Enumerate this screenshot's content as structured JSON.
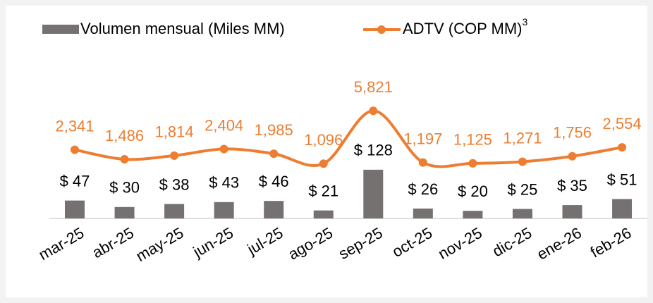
{
  "chart_data": {
    "type": "bar_line",
    "categories": [
      "mar-25",
      "abr-25",
      "may-25",
      "jun-25",
      "jul-25",
      "ago-25",
      "sep-25",
      "oct-25",
      "nov-25",
      "dic-25",
      "ene-26",
      "feb-26"
    ],
    "series": [
      {
        "name": "Volumen mensual (Miles MM)",
        "type": "bar",
        "color": "#767171",
        "values": [
          47,
          30,
          38,
          43,
          46,
          21,
          128,
          26,
          20,
          25,
          35,
          51
        ],
        "value_labels": [
          "$ 47",
          "$ 30",
          "$ 38",
          "$ 43",
          "$ 46",
          "$ 21",
          "$ 128",
          "$ 26",
          "$ 20",
          "$ 25",
          "$ 35",
          "$ 51"
        ]
      },
      {
        "name": "ADTV (COP MM)",
        "footnote_marker": "3",
        "type": "line",
        "axis": "y2",
        "color": "#ed7d31",
        "values": [
          2341,
          1486,
          1814,
          2404,
          1985,
          1096,
          5821,
          1197,
          1125,
          1271,
          1756,
          2554
        ],
        "value_labels": [
          "2,341",
          "1,486",
          "1,814",
          "2,404",
          "1,985",
          "1,096",
          "5,821",
          "1,197",
          "1,125",
          "1,271",
          "1,756",
          "2,554"
        ]
      }
    ],
    "ylim": [
      0,
      500
    ],
    "y2lim": [
      -3800,
      13200
    ],
    "grid": false
  }
}
